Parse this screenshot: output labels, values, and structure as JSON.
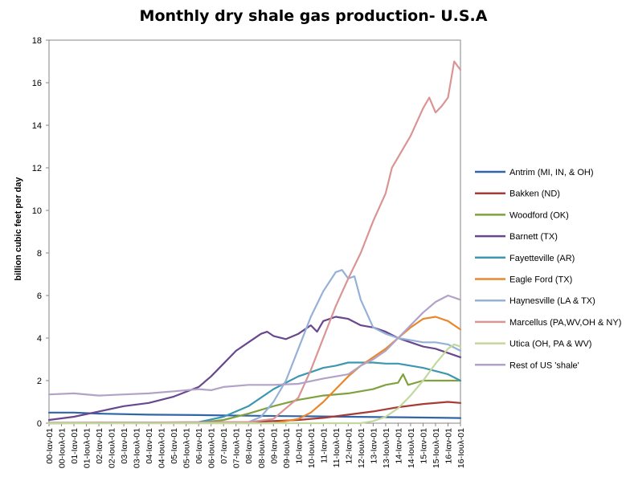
{
  "chart_data": {
    "type": "line",
    "title": "Monthly dry shale gas production- U.S.A",
    "xlabel": "",
    "ylabel": "billion cubic feet per day",
    "ylim": [
      0,
      18
    ],
    "yticks": [
      0,
      2,
      4,
      6,
      8,
      10,
      12,
      14,
      16,
      18
    ],
    "xlim": [
      2000.0,
      2016.5
    ],
    "grid": false,
    "legend_position": "right",
    "x_tick_labels": [
      {
        "t": 2000.0,
        "label": "00-Ιαν-01"
      },
      {
        "t": 2000.5,
        "label": "00-Ιουλ-01"
      },
      {
        "t": 2001.0,
        "label": "01-Ιαν-01"
      },
      {
        "t": 2001.5,
        "label": "01-Ιουλ-01"
      },
      {
        "t": 2002.0,
        "label": "02-Ιαν-01"
      },
      {
        "t": 2002.5,
        "label": "02-Ιουλ-01"
      },
      {
        "t": 2003.0,
        "label": "03-Ιαν-01"
      },
      {
        "t": 2003.5,
        "label": "03-Ιουλ-01"
      },
      {
        "t": 2004.0,
        "label": "04-Ιαν-01"
      },
      {
        "t": 2004.5,
        "label": "04-Ιουλ-01"
      },
      {
        "t": 2005.0,
        "label": "05-Ιαν-01"
      },
      {
        "t": 2005.5,
        "label": "05-Ιουλ-01"
      },
      {
        "t": 2006.0,
        "label": "06-Ιαν-01"
      },
      {
        "t": 2006.5,
        "label": "06-Ιουλ-01"
      },
      {
        "t": 2007.0,
        "label": "07-Ιαν-01"
      },
      {
        "t": 2007.5,
        "label": "07-Ιουλ-01"
      },
      {
        "t": 2008.0,
        "label": "08-Ιαν-01"
      },
      {
        "t": 2008.5,
        "label": "08-Ιουλ-01"
      },
      {
        "t": 2009.0,
        "label": "09-Ιαν-01"
      },
      {
        "t": 2009.5,
        "label": "09-Ιουλ-01"
      },
      {
        "t": 2010.0,
        "label": "10-Ιαν-01"
      },
      {
        "t": 2010.5,
        "label": "10-Ιουλ-01"
      },
      {
        "t": 2011.0,
        "label": "11-Ιαν-01"
      },
      {
        "t": 2011.5,
        "label": "11-Ιουλ-01"
      },
      {
        "t": 2012.0,
        "label": "12-Ιαν-01"
      },
      {
        "t": 2012.5,
        "label": "12-Ιουλ-01"
      },
      {
        "t": 2013.0,
        "label": "13-Ιαν-01"
      },
      {
        "t": 2013.5,
        "label": "13-Ιουλ-01"
      },
      {
        "t": 2014.0,
        "label": "14-Ιαν-01"
      },
      {
        "t": 2014.5,
        "label": "14-Ιουλ-01"
      },
      {
        "t": 2015.0,
        "label": "15-Ιαν-01"
      },
      {
        "t": 2015.5,
        "label": "15-Ιουλ-01"
      },
      {
        "t": 2016.0,
        "label": "16-Ιαν-01"
      },
      {
        "t": 2016.5,
        "label": "16-Ιουλ-01"
      }
    ],
    "series": [
      {
        "name": "Antrim (MI, IN, & OH)",
        "color": "#3165a8",
        "points": [
          [
            2000.0,
            0.5
          ],
          [
            2001.0,
            0.5
          ],
          [
            2002.0,
            0.45
          ],
          [
            2004.0,
            0.4
          ],
          [
            2006.0,
            0.38
          ],
          [
            2008.0,
            0.35
          ],
          [
            2010.0,
            0.33
          ],
          [
            2012.0,
            0.3
          ],
          [
            2014.0,
            0.28
          ],
          [
            2016.0,
            0.25
          ],
          [
            2016.5,
            0.24
          ]
        ]
      },
      {
        "name": "Bakken (ND)",
        "color": "#a83a37",
        "points": [
          [
            2000.0,
            0.02
          ],
          [
            2006.0,
            0.03
          ],
          [
            2008.0,
            0.05
          ],
          [
            2010.0,
            0.15
          ],
          [
            2011.0,
            0.25
          ],
          [
            2012.0,
            0.4
          ],
          [
            2013.0,
            0.55
          ],
          [
            2014.0,
            0.75
          ],
          [
            2015.0,
            0.9
          ],
          [
            2016.0,
            1.0
          ],
          [
            2016.5,
            0.95
          ]
        ]
      },
      {
        "name": "Woodford (OK)",
        "color": "#7fa13f",
        "points": [
          [
            2000.0,
            0.0
          ],
          [
            2006.0,
            0.02
          ],
          [
            2007.0,
            0.15
          ],
          [
            2008.0,
            0.45
          ],
          [
            2009.0,
            0.8
          ],
          [
            2010.0,
            1.1
          ],
          [
            2011.0,
            1.3
          ],
          [
            2012.0,
            1.4
          ],
          [
            2013.0,
            1.6
          ],
          [
            2013.5,
            1.8
          ],
          [
            2014.0,
            1.9
          ],
          [
            2014.2,
            2.3
          ],
          [
            2014.4,
            1.8
          ],
          [
            2015.0,
            2.0
          ],
          [
            2016.0,
            2.0
          ],
          [
            2016.5,
            2.0
          ]
        ]
      },
      {
        "name": "Barnett (TX)",
        "color": "#68478f",
        "points": [
          [
            2000.0,
            0.15
          ],
          [
            2001.0,
            0.3
          ],
          [
            2002.0,
            0.55
          ],
          [
            2003.0,
            0.8
          ],
          [
            2004.0,
            0.95
          ],
          [
            2005.0,
            1.25
          ],
          [
            2006.0,
            1.7
          ],
          [
            2006.5,
            2.2
          ],
          [
            2007.0,
            2.8
          ],
          [
            2007.5,
            3.4
          ],
          [
            2008.0,
            3.8
          ],
          [
            2008.5,
            4.2
          ],
          [
            2008.75,
            4.3
          ],
          [
            2009.0,
            4.1
          ],
          [
            2009.5,
            3.95
          ],
          [
            2010.0,
            4.2
          ],
          [
            2010.5,
            4.6
          ],
          [
            2010.75,
            4.3
          ],
          [
            2011.0,
            4.8
          ],
          [
            2011.5,
            5.0
          ],
          [
            2012.0,
            4.9
          ],
          [
            2012.5,
            4.6
          ],
          [
            2013.0,
            4.5
          ],
          [
            2013.5,
            4.3
          ],
          [
            2014.0,
            4.0
          ],
          [
            2014.5,
            3.8
          ],
          [
            2015.0,
            3.6
          ],
          [
            2015.5,
            3.5
          ],
          [
            2016.0,
            3.3
          ],
          [
            2016.5,
            3.1
          ]
        ]
      },
      {
        "name": "Fayetteville (AR)",
        "color": "#3d97b0",
        "points": [
          [
            2000.0,
            0.0
          ],
          [
            2006.0,
            0.05
          ],
          [
            2007.0,
            0.3
          ],
          [
            2008.0,
            0.8
          ],
          [
            2009.0,
            1.6
          ],
          [
            2009.5,
            1.9
          ],
          [
            2010.0,
            2.2
          ],
          [
            2010.5,
            2.4
          ],
          [
            2011.0,
            2.6
          ],
          [
            2011.5,
            2.7
          ],
          [
            2012.0,
            2.85
          ],
          [
            2013.0,
            2.85
          ],
          [
            2013.5,
            2.8
          ],
          [
            2014.0,
            2.8
          ],
          [
            2014.5,
            2.7
          ],
          [
            2015.0,
            2.6
          ],
          [
            2015.5,
            2.45
          ],
          [
            2016.0,
            2.3
          ],
          [
            2016.5,
            2.0
          ]
        ]
      },
      {
        "name": "Eagle Ford (TX)",
        "color": "#e9872d",
        "points": [
          [
            2000.0,
            0.0
          ],
          [
            2009.0,
            0.0
          ],
          [
            2010.0,
            0.2
          ],
          [
            2010.5,
            0.5
          ],
          [
            2011.0,
            1.0
          ],
          [
            2011.5,
            1.6
          ],
          [
            2012.0,
            2.2
          ],
          [
            2012.5,
            2.7
          ],
          [
            2013.0,
            3.1
          ],
          [
            2013.5,
            3.5
          ],
          [
            2014.0,
            4.0
          ],
          [
            2014.5,
            4.5
          ],
          [
            2015.0,
            4.9
          ],
          [
            2015.5,
            5.0
          ],
          [
            2016.0,
            4.8
          ],
          [
            2016.5,
            4.4
          ]
        ]
      },
      {
        "name": "Haynesville (LA & TX)",
        "color": "#95b1d8",
        "points": [
          [
            2000.0,
            0.0
          ],
          [
            2008.0,
            0.05
          ],
          [
            2008.5,
            0.3
          ],
          [
            2009.0,
            1.0
          ],
          [
            2009.5,
            2.0
          ],
          [
            2010.0,
            3.5
          ],
          [
            2010.5,
            5.0
          ],
          [
            2011.0,
            6.2
          ],
          [
            2011.5,
            7.1
          ],
          [
            2011.75,
            7.2
          ],
          [
            2012.0,
            6.8
          ],
          [
            2012.25,
            6.9
          ],
          [
            2012.5,
            5.8
          ],
          [
            2013.0,
            4.5
          ],
          [
            2013.5,
            4.2
          ],
          [
            2014.0,
            4.0
          ],
          [
            2014.5,
            3.9
          ],
          [
            2015.0,
            3.8
          ],
          [
            2015.5,
            3.8
          ],
          [
            2016.0,
            3.7
          ],
          [
            2016.5,
            3.4
          ]
        ]
      },
      {
        "name": "Marcellus (PA,WV,OH & NY)",
        "color": "#d99594",
        "points": [
          [
            2000.0,
            0.0
          ],
          [
            2008.0,
            0.05
          ],
          [
            2009.0,
            0.2
          ],
          [
            2010.0,
            1.2
          ],
          [
            2010.5,
            2.5
          ],
          [
            2011.0,
            4.0
          ],
          [
            2011.5,
            5.5
          ],
          [
            2012.0,
            6.8
          ],
          [
            2012.5,
            8.0
          ],
          [
            2013.0,
            9.5
          ],
          [
            2013.5,
            10.8
          ],
          [
            2013.75,
            12.0
          ],
          [
            2014.0,
            12.5
          ],
          [
            2014.5,
            13.5
          ],
          [
            2015.0,
            14.8
          ],
          [
            2015.25,
            15.3
          ],
          [
            2015.5,
            14.6
          ],
          [
            2015.75,
            14.9
          ],
          [
            2016.0,
            15.3
          ],
          [
            2016.25,
            17.0
          ],
          [
            2016.5,
            16.6
          ]
        ]
      },
      {
        "name": "Utica (OH, PA & WV)",
        "color": "#c3d89c",
        "points": [
          [
            2000.0,
            0.0
          ],
          [
            2012.5,
            0.0
          ],
          [
            2013.0,
            0.1
          ],
          [
            2013.5,
            0.3
          ],
          [
            2014.0,
            0.7
          ],
          [
            2014.5,
            1.3
          ],
          [
            2015.0,
            2.0
          ],
          [
            2015.5,
            2.8
          ],
          [
            2016.0,
            3.5
          ],
          [
            2016.25,
            3.7
          ],
          [
            2016.5,
            3.6
          ]
        ]
      },
      {
        "name": "Rest of US 'shale'",
        "color": "#b3a2c8",
        "points": [
          [
            2000.0,
            1.35
          ],
          [
            2001.0,
            1.4
          ],
          [
            2002.0,
            1.3
          ],
          [
            2003.0,
            1.35
          ],
          [
            2004.0,
            1.4
          ],
          [
            2005.0,
            1.5
          ],
          [
            2006.0,
            1.6
          ],
          [
            2006.5,
            1.55
          ],
          [
            2007.0,
            1.7
          ],
          [
            2008.0,
            1.8
          ],
          [
            2009.0,
            1.8
          ],
          [
            2010.0,
            1.85
          ],
          [
            2011.0,
            2.1
          ],
          [
            2012.0,
            2.3
          ],
          [
            2012.5,
            2.7
          ],
          [
            2013.0,
            3.0
          ],
          [
            2013.5,
            3.4
          ],
          [
            2014.0,
            4.0
          ],
          [
            2014.5,
            4.6
          ],
          [
            2015.0,
            5.2
          ],
          [
            2015.5,
            5.7
          ],
          [
            2016.0,
            6.0
          ],
          [
            2016.5,
            5.8
          ]
        ]
      }
    ]
  }
}
